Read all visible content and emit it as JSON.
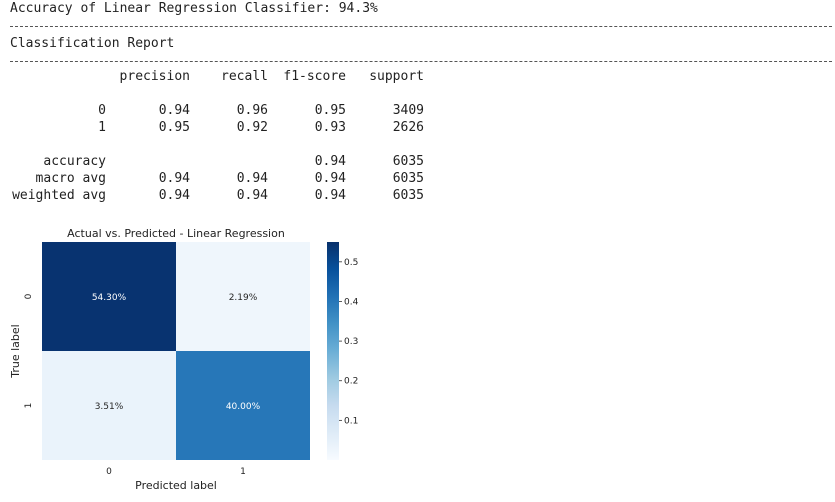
{
  "header": {
    "accuracy_line": "Accuracy of Linear Regression Classifier: 94.3%",
    "report_title": "Classification Report"
  },
  "report": {
    "columns": [
      "",
      "precision",
      "recall",
      "f1-score",
      "support"
    ],
    "rows": [
      [
        "0",
        "0.94",
        "0.96",
        "0.95",
        "3409"
      ],
      [
        "1",
        "0.95",
        "0.92",
        "0.93",
        "2626"
      ],
      [
        "",
        "",
        "",
        "",
        ""
      ],
      [
        "accuracy",
        "",
        "",
        "0.94",
        "6035"
      ],
      [
        "macro avg",
        "0.94",
        "0.94",
        "0.94",
        "6035"
      ],
      [
        "weighted avg",
        "0.94",
        "0.94",
        "0.94",
        "6035"
      ]
    ]
  },
  "chart_data": {
    "type": "heatmap",
    "title": "Actual vs. Predicted - Linear Regression",
    "xlabel": "Predicted label",
    "ylabel": "True label",
    "x_categories": [
      "0",
      "1"
    ],
    "y_categories": [
      "0",
      "1"
    ],
    "values": [
      [
        0.543,
        0.0219
      ],
      [
        0.0351,
        0.4
      ]
    ],
    "annotations": [
      [
        "54.30%",
        "2.19%"
      ],
      [
        "3.51%",
        "40.00%"
      ]
    ],
    "colormap": "Blues",
    "colorbar": {
      "range": [
        0,
        0.55
      ],
      "ticks": [
        0.1,
        0.2,
        0.3,
        0.4,
        0.5
      ],
      "tick_labels": [
        "0.1",
        "0.2",
        "0.3",
        "0.4",
        "0.5"
      ]
    }
  }
}
